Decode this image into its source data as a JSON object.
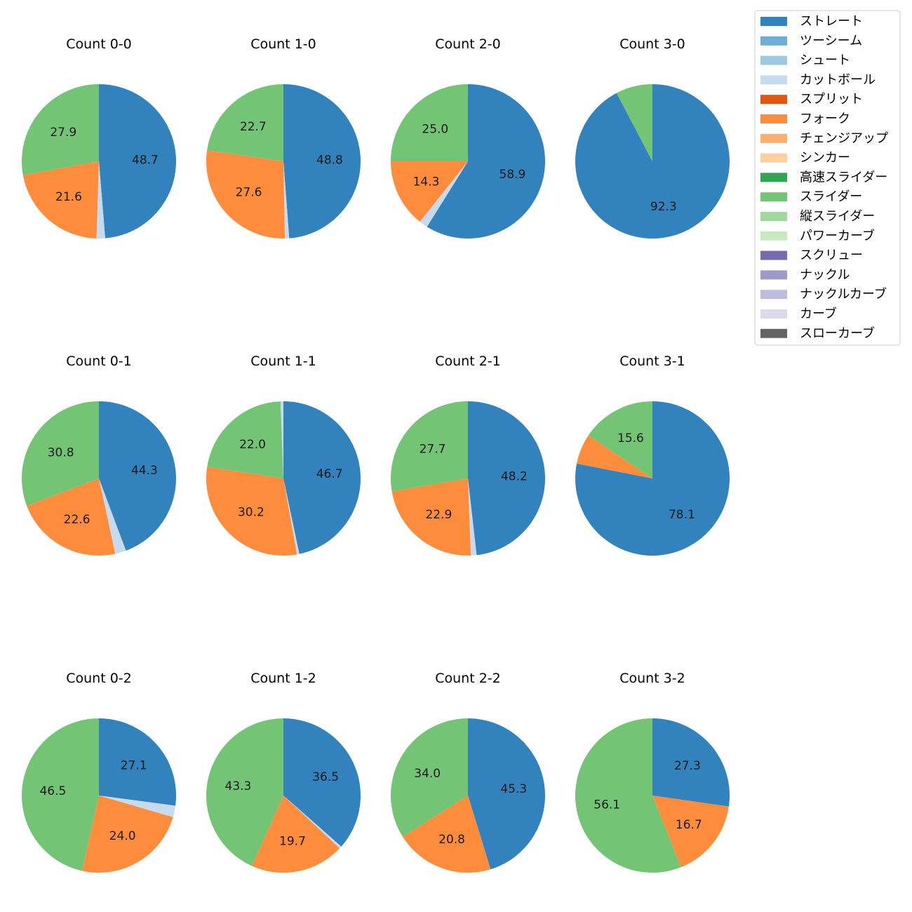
{
  "chart_data": {
    "type": "pie",
    "pitch_types": [
      {
        "name": "ストレート",
        "color": "#3182bd"
      },
      {
        "name": "ツーシーム",
        "color": "#6baed6"
      },
      {
        "name": "シュート",
        "color": "#9ecae1"
      },
      {
        "name": "カットボール",
        "color": "#c6dbef"
      },
      {
        "name": "スプリット",
        "color": "#e6550d"
      },
      {
        "name": "フォーク",
        "color": "#fd8d3c"
      },
      {
        "name": "チェンジアップ",
        "color": "#fdae6b"
      },
      {
        "name": "シンカー",
        "color": "#fdd0a2"
      },
      {
        "name": "高速スライダー",
        "color": "#31a354"
      },
      {
        "name": "スライダー",
        "color": "#74c476"
      },
      {
        "name": "縦スライダー",
        "color": "#a1d99b"
      },
      {
        "name": "パワーカーブ",
        "color": "#c7e9c0"
      },
      {
        "name": "スクリュー",
        "color": "#756bb1"
      },
      {
        "name": "ナックル",
        "color": "#9e9ac8"
      },
      {
        "name": "ナックルカーブ",
        "color": "#bcbddc"
      },
      {
        "name": "カーブ",
        "color": "#dadaeb"
      },
      {
        "name": "スローカーブ",
        "color": "#636363"
      }
    ],
    "panels": [
      {
        "title": "Count 0-0",
        "slices": [
          {
            "type": "ストレート",
            "value": 48.7,
            "label": "48.7"
          },
          {
            "type": "カットボール",
            "value": 1.8
          },
          {
            "type": "フォーク",
            "value": 21.6,
            "label": "21.6"
          },
          {
            "type": "スライダー",
            "value": 27.9,
            "label": "27.9"
          }
        ]
      },
      {
        "title": "Count 1-0",
        "slices": [
          {
            "type": "ストレート",
            "value": 48.8,
            "label": "48.8"
          },
          {
            "type": "カットボール",
            "value": 0.9
          },
          {
            "type": "フォーク",
            "value": 27.6,
            "label": "27.6"
          },
          {
            "type": "スライダー",
            "value": 22.7,
            "label": "22.7"
          }
        ]
      },
      {
        "title": "Count 2-0",
        "slices": [
          {
            "type": "ストレート",
            "value": 58.9,
            "label": "58.9"
          },
          {
            "type": "カットボール",
            "value": 1.8
          },
          {
            "type": "フォーク",
            "value": 14.3,
            "label": "14.3"
          },
          {
            "type": "スライダー",
            "value": 25.0,
            "label": "25.0"
          }
        ]
      },
      {
        "title": "Count 3-0",
        "slices": [
          {
            "type": "ストレート",
            "value": 92.3,
            "label": "92.3"
          },
          {
            "type": "スライダー",
            "value": 7.7
          }
        ]
      },
      {
        "title": "Count 0-1",
        "slices": [
          {
            "type": "ストレート",
            "value": 44.3,
            "label": "44.3"
          },
          {
            "type": "カットボール",
            "value": 2.3
          },
          {
            "type": "フォーク",
            "value": 22.6,
            "label": "22.6"
          },
          {
            "type": "スライダー",
            "value": 30.8,
            "label": "30.8"
          }
        ]
      },
      {
        "title": "Count 1-1",
        "slices": [
          {
            "type": "ストレート",
            "value": 46.7,
            "label": "46.7"
          },
          {
            "type": "カットボール",
            "value": 0.5
          },
          {
            "type": "フォーク",
            "value": 30.2,
            "label": "30.2"
          },
          {
            "type": "スライダー",
            "value": 22.0,
            "label": "22.0"
          },
          {
            "type": "カットボール",
            "value": 0.6
          }
        ]
      },
      {
        "title": "Count 2-1",
        "slices": [
          {
            "type": "ストレート",
            "value": 48.2,
            "label": "48.2"
          },
          {
            "type": "カットボール",
            "value": 1.2
          },
          {
            "type": "フォーク",
            "value": 22.9,
            "label": "22.9"
          },
          {
            "type": "スライダー",
            "value": 27.7,
            "label": "27.7"
          }
        ]
      },
      {
        "title": "Count 3-1",
        "slices": [
          {
            "type": "ストレート",
            "value": 78.1,
            "label": "78.1"
          },
          {
            "type": "フォーク",
            "value": 6.3
          },
          {
            "type": "スライダー",
            "value": 15.6,
            "label": "15.6"
          }
        ]
      },
      {
        "title": "Count 0-2",
        "slices": [
          {
            "type": "ストレート",
            "value": 27.1,
            "label": "27.1"
          },
          {
            "type": "カットボール",
            "value": 2.4
          },
          {
            "type": "フォーク",
            "value": 24.0,
            "label": "24.0"
          },
          {
            "type": "スライダー",
            "value": 46.5,
            "label": "46.5"
          }
        ]
      },
      {
        "title": "Count 1-2",
        "slices": [
          {
            "type": "ストレート",
            "value": 36.5,
            "label": "36.5"
          },
          {
            "type": "カットボール",
            "value": 0.5
          },
          {
            "type": "フォーク",
            "value": 19.7,
            "label": "19.7"
          },
          {
            "type": "スライダー",
            "value": 43.3,
            "label": "43.3"
          }
        ]
      },
      {
        "title": "Count 2-2",
        "slices": [
          {
            "type": "ストレート",
            "value": 45.3,
            "label": "45.3"
          },
          {
            "type": "フォーク",
            "value": 20.8,
            "label": "20.8"
          },
          {
            "type": "スライダー",
            "value": 34.0,
            "label": "34.0"
          }
        ]
      },
      {
        "title": "Count 3-2",
        "slices": [
          {
            "type": "ストレート",
            "value": 27.3,
            "label": "27.3"
          },
          {
            "type": "フォーク",
            "value": 16.7,
            "label": "16.7"
          },
          {
            "type": "スライダー",
            "value": 56.1,
            "label": "56.1"
          }
        ]
      }
    ],
    "legend_position": "top-right"
  }
}
